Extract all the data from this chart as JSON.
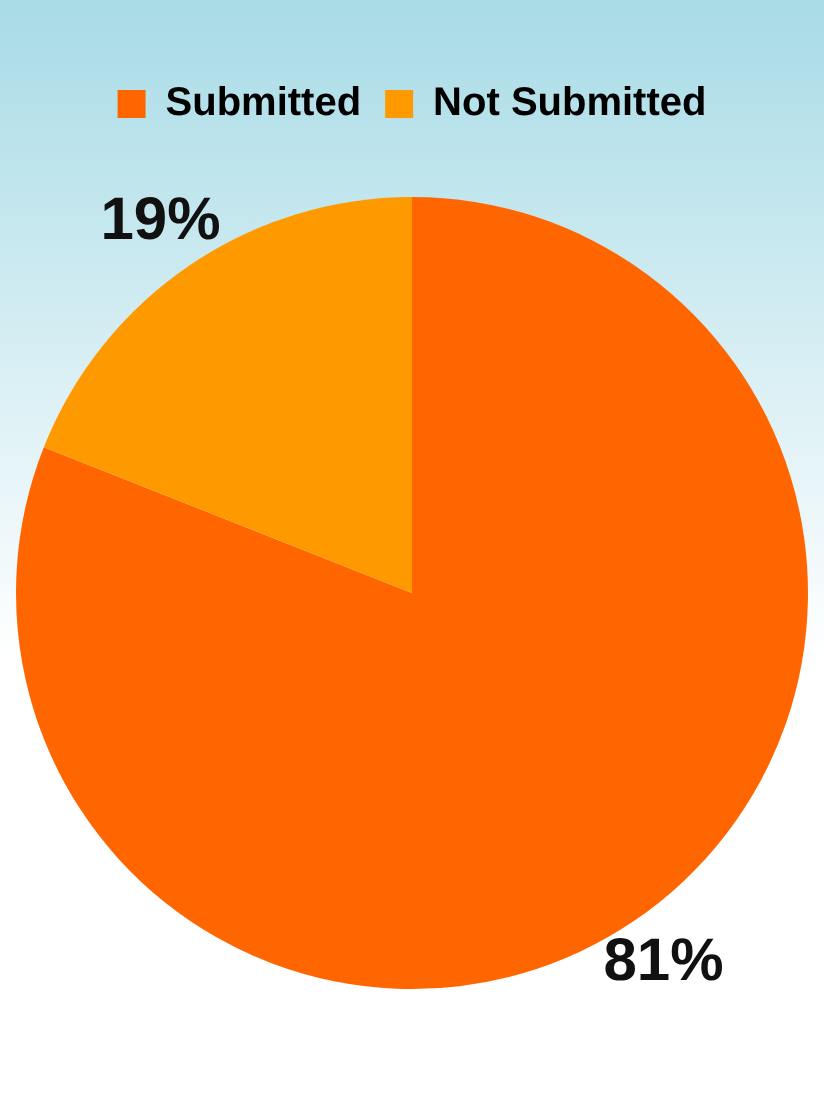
{
  "chart_data": {
    "type": "pie",
    "categories": [
      "Submitted",
      "Not Submitted"
    ],
    "values": [
      81,
      19
    ],
    "colors": [
      "#ff6600",
      "#ff9900"
    ],
    "value_labels": [
      "81%",
      "19%"
    ],
    "legend": "top"
  }
}
